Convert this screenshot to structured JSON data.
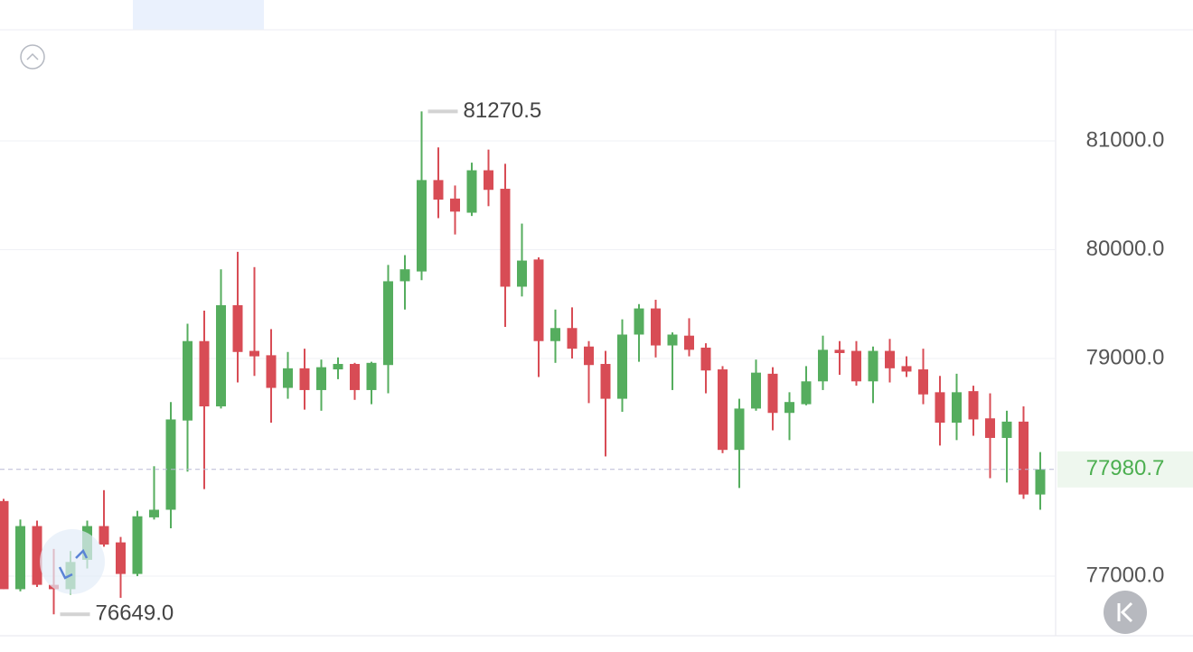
{
  "chart_data": {
    "type": "candlestick",
    "up_color": "#55ad5e",
    "down_color": "#d84c55",
    "ylim": [
      76452,
      82021
    ],
    "yticks": [
      {
        "value": 81000,
        "label": "81000.0"
      },
      {
        "value": 80000,
        "label": "80000.0"
      },
      {
        "value": 79000,
        "label": "79000.0"
      },
      {
        "value": 77000,
        "label": "77000.0"
      }
    ],
    "grid": true,
    "open": [
      77690,
      76880,
      77460,
      76920,
      76880,
      77150,
      77460,
      77310,
      77020,
      77540,
      77610,
      78430,
      79160,
      78560,
      79490,
      79070,
      79030,
      78730,
      78910,
      78710,
      78900,
      78950,
      78710,
      78940,
      79710,
      79800,
      80640,
      80470,
      80340,
      80730,
      80560,
      79660,
      79910,
      79160,
      79280,
      79110,
      78950,
      78630,
      79220,
      79460,
      79120,
      79210,
      79100,
      78900,
      78160,
      78540,
      78860,
      78500,
      78580,
      78790,
      79080,
      79070,
      78790,
      79070,
      78930,
      78900,
      78690,
      78410,
      78700,
      78450,
      78270,
      78420,
      77750
    ],
    "close": [
      76880,
      77460,
      76920,
      76880,
      77130,
      77460,
      77290,
      77020,
      77550,
      77610,
      78440,
      79160,
      78560,
      79490,
      79060,
      79020,
      78730,
      78910,
      78710,
      78920,
      78950,
      78710,
      78960,
      79710,
      79820,
      80640,
      80460,
      80350,
      80730,
      80550,
      79660,
      79900,
      79160,
      79280,
      79090,
      78940,
      78630,
      79220,
      79460,
      79120,
      79220,
      79080,
      78890,
      78160,
      78540,
      78870,
      78500,
      78600,
      78790,
      79080,
      79050,
      78790,
      79070,
      78910,
      78880,
      78670,
      78410,
      78690,
      78440,
      78270,
      78420,
      77750,
      77980.7
    ],
    "high": [
      77710,
      77520,
      77510,
      77250,
      77230,
      77510,
      77790,
      77360,
      77600,
      78010,
      78600,
      79320,
      79440,
      79820,
      79980,
      79840,
      79270,
      79060,
      79090,
      78990,
      79010,
      78960,
      78970,
      79860,
      79950,
      81270.5,
      80940,
      80590,
      80800,
      80920,
      80790,
      80240,
      79930,
      79450,
      79470,
      79160,
      79070,
      79360,
      79500,
      79540,
      79240,
      79370,
      79140,
      78930,
      78630,
      78990,
      78920,
      78690,
      78930,
      79210,
      79160,
      79160,
      79110,
      79180,
      79020,
      79090,
      78840,
      78860,
      78750,
      78680,
      78520,
      78560,
      78140
    ],
    "low": [
      76880,
      76860,
      76900,
      76649,
      76830,
      77070,
      77270,
      76800,
      77000,
      77520,
      77440,
      77960,
      77800,
      78540,
      78780,
      78840,
      78410,
      78630,
      78530,
      78520,
      78810,
      78620,
      78580,
      78680,
      79450,
      79720,
      80290,
      80140,
      80310,
      80400,
      79290,
      79570,
      78830,
      78960,
      79000,
      78590,
      78100,
      78510,
      78970,
      79010,
      78710,
      79020,
      78680,
      78130,
      77810,
      78520,
      78340,
      78250,
      78570,
      78710,
      78850,
      78750,
      78590,
      78780,
      78830,
      78580,
      78200,
      78250,
      78290,
      77900,
      77860,
      77710,
      77610
    ],
    "max_label": 81270.5,
    "min_label": {
      "value": 76649,
      "label": "76649.0"
    },
    "last_price": 77980.7,
    "last_price_color": "#4caf50"
  }
}
